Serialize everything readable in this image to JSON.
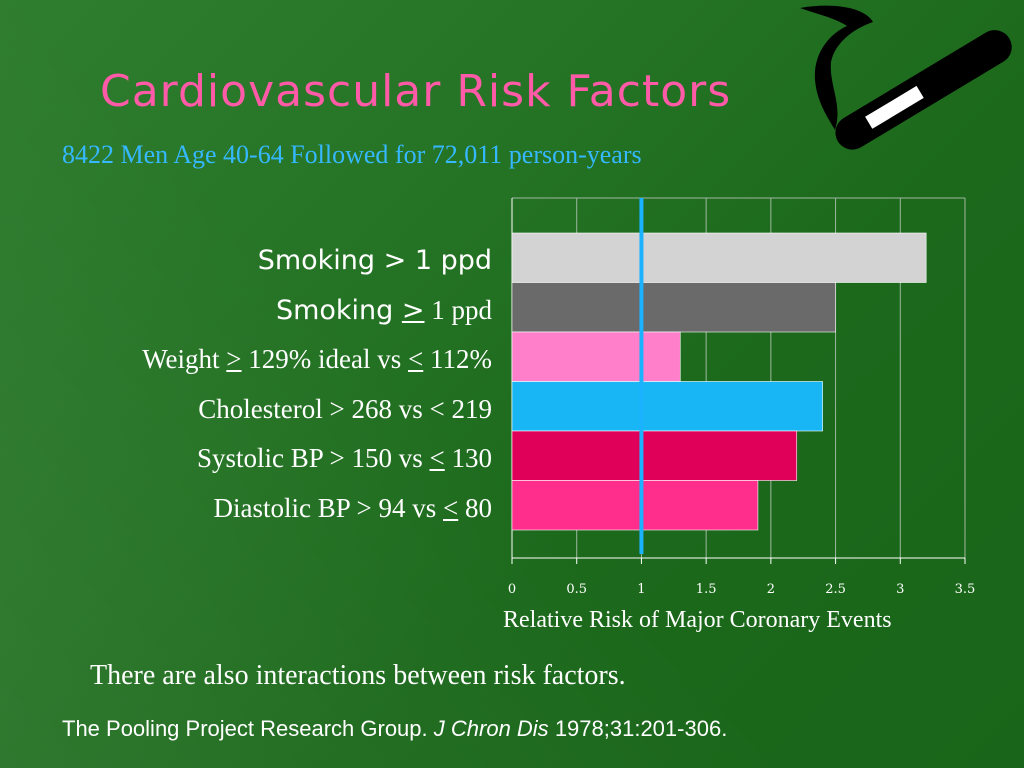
{
  "slide": {
    "title": "Cardiovascular Risk Factors",
    "subtitle": "8422 Men Age 40-64 Followed for 72,011 person-years",
    "note": "There are also interactions between risk factors.",
    "citation": {
      "authors": "The Pooling Project Research Group.",
      "journal": "J Chron Dis",
      "details": "1978;31:201-306."
    }
  },
  "labels": [
    {
      "parts": [
        "Smoking > 1 ppd"
      ]
    },
    {
      "parts": [
        "Smoking ",
        ">",
        " 1 ppd"
      ]
    },
    {
      "parts": [
        "Weight ",
        ">",
        " 129% ideal vs ",
        "<",
        " 112%"
      ]
    },
    {
      "parts": [
        "Cholesterol > 268 vs < 219"
      ]
    },
    {
      "parts": [
        "Systolic BP > 150 vs ",
        "<",
        " 130"
      ]
    },
    {
      "parts": [
        "Diastolic BP > 94 vs ",
        "<",
        " 80"
      ]
    }
  ],
  "chart_data": {
    "type": "bar",
    "orientation": "horizontal",
    "categories": [
      "Smoking > 1 ppd",
      "Smoking > 1 ppd",
      "Weight > 129% ideal vs < 112%",
      "Cholesterol > 268 vs < 219",
      "Systolic BP > 150 vs < 130",
      "Diastolic BP > 94 vs < 80"
    ],
    "values": [
      3.2,
      2.5,
      1.3,
      2.4,
      2.2,
      1.9
    ],
    "bar_colors": [
      "#d3d3d3",
      "#6a6a6a",
      "#ff7fcb",
      "#18b6f4",
      "#e0005a",
      "#ff2e8c"
    ],
    "xlabel": "Relative Risk of Major Coronary Events",
    "xlim": [
      0,
      3.5
    ],
    "xticks": [
      "0",
      "0.5",
      "1",
      "1.5",
      "2",
      "2.5",
      "3",
      "3.5"
    ],
    "reference_line": {
      "value": 1,
      "color": "#1bb2ff"
    },
    "grid": true
  }
}
